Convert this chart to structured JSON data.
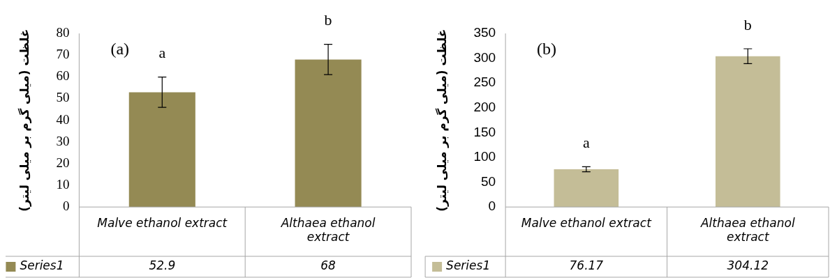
{
  "chart_data": [
    {
      "type": "bar",
      "ylabel": "غلظت (میلی گرم بر میلی لیتر)",
      "categories": [
        "Malve ethanol extract",
        "Althaea ethanol extract"
      ],
      "series": [
        {
          "name": "Series1",
          "color": "#948a54",
          "values": [
            52.9,
            68
          ],
          "errors": [
            7,
            7
          ]
        }
      ],
      "ylim": [
        0,
        80
      ],
      "yticks": [
        0,
        10,
        20,
        30,
        40,
        50,
        60,
        70,
        80
      ],
      "grid": false,
      "legend": "bottom",
      "data_labels": true,
      "annotations": [
        "(a)",
        "a",
        "b"
      ]
    },
    {
      "type": "bar",
      "ylabel": "غلظت (میلی گرم بر میلی لیتر)",
      "categories": [
        "Malve ethanol extract",
        "Althaea ethanol extract"
      ],
      "series": [
        {
          "name": "Series1",
          "color": "#c4bd97",
          "values": [
            76.17,
            304.12
          ],
          "errors": [
            5,
            15
          ]
        }
      ],
      "ylim": [
        0,
        350
      ],
      "yticks": [
        0,
        50,
        100,
        150,
        200,
        250,
        300,
        350
      ],
      "grid": false,
      "legend": "bottom",
      "data_labels": true,
      "annotations": [
        "(b)",
        "a",
        "b"
      ]
    }
  ]
}
